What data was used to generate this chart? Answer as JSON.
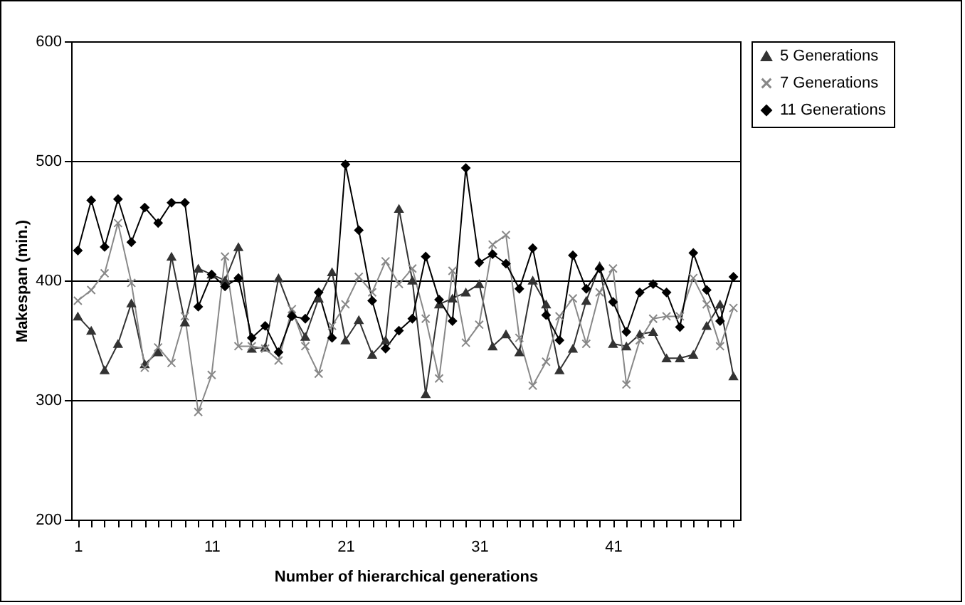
{
  "chart_data": {
    "type": "line",
    "xlabel": "Number of hierarchical generations",
    "ylabel": "Makespan (min.)",
    "categories": [
      "1",
      null,
      null,
      null,
      null,
      null,
      null,
      null,
      null,
      null,
      "11",
      null,
      null,
      null,
      null,
      null,
      null,
      null,
      null,
      null,
      "21",
      null,
      null,
      null,
      null,
      null,
      null,
      null,
      null,
      null,
      "31",
      null,
      null,
      null,
      null,
      null,
      null,
      null,
      null,
      null,
      "41",
      null,
      null,
      null,
      null,
      null,
      null,
      null,
      null,
      null
    ],
    "ylim": [
      200,
      600
    ],
    "yticks": [
      200,
      300,
      400,
      500,
      600
    ],
    "grid": "y",
    "legend": "right",
    "series": [
      {
        "name": "5 Generations",
        "color": "#333333",
        "marker": "triangle",
        "values": [
          370,
          358,
          325,
          347,
          381,
          330,
          340,
          420,
          365,
          410,
          405,
          400,
          428,
          343,
          344,
          402,
          373,
          353,
          385,
          407,
          350,
          367,
          338,
          350,
          460,
          400,
          305,
          380,
          385,
          390,
          397,
          345,
          355,
          340,
          400,
          380,
          325,
          343,
          383,
          412,
          347,
          345,
          355,
          357,
          335,
          335,
          338,
          362,
          380,
          320
        ]
      },
      {
        "name": "7 Generations",
        "color": "#888888",
        "marker": "cross",
        "values": [
          383,
          392,
          406,
          448,
          398,
          327,
          344,
          331,
          370,
          290,
          321,
          420,
          345,
          345,
          343,
          333,
          376,
          345,
          322,
          362,
          380,
          403,
          390,
          416,
          397,
          410,
          368,
          318,
          408,
          348,
          363,
          430,
          438,
          352,
          312,
          332,
          370,
          385,
          347,
          390,
          410,
          313,
          350,
          368,
          370,
          370,
          402,
          380,
          345,
          377
        ]
      },
      {
        "name": "11 Generations",
        "color": "#000000",
        "marker": "diamond",
        "values": [
          425,
          467,
          428,
          468,
          432,
          461,
          448,
          465,
          465,
          378,
          405,
          395,
          402,
          352,
          362,
          340,
          370,
          368,
          390,
          352,
          497,
          442,
          383,
          343,
          358,
          368,
          420,
          384,
          366,
          494,
          415,
          422,
          414,
          393,
          427,
          371,
          350,
          421,
          393,
          410,
          382,
          357,
          390,
          397,
          390,
          361,
          423,
          392,
          366,
          403
        ]
      }
    ]
  }
}
